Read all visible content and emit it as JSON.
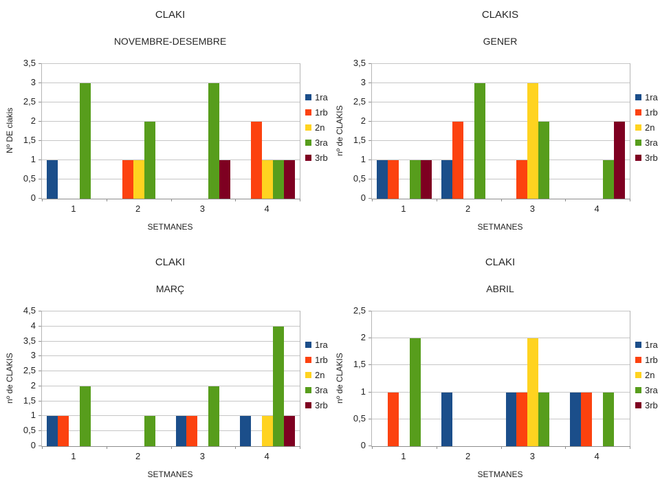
{
  "page": {
    "background": "#ffffff"
  },
  "series_colors": {
    "1ra": "#1B4E8A",
    "1rb": "#FC420F",
    "2n": "#FFD320",
    "3ra": "#579D1C",
    "3rb": "#7E0021"
  },
  "chart_data": [
    {
      "type": "bar",
      "title": "CLAKI",
      "subtitle": "NOVEMBRE-DESEMBRE",
      "xlabel": "SETMANES",
      "ylabel": "Nº DE clakis",
      "categories": [
        "1",
        "2",
        "3",
        "4"
      ],
      "series": [
        {
          "name": "1ra",
          "color": "#1B4E8A",
          "values": [
            1,
            0,
            0,
            0
          ]
        },
        {
          "name": "1rb",
          "color": "#FC420F",
          "values": [
            0,
            1,
            0,
            2
          ]
        },
        {
          "name": "2n",
          "color": "#FFD320",
          "values": [
            0,
            1,
            0,
            1
          ]
        },
        {
          "name": "3ra",
          "color": "#579D1C",
          "values": [
            3,
            2,
            3,
            1
          ]
        },
        {
          "name": "3rb",
          "color": "#7E0021",
          "values": [
            0,
            0,
            1,
            1
          ]
        }
      ],
      "ylim": [
        0,
        3.5
      ],
      "ytick_step": 0.5,
      "ytick_labels": [
        "0",
        "0,5",
        "1",
        "1,5",
        "2",
        "2,5",
        "3",
        "3,5"
      ],
      "legend_position": "right",
      "grid": true
    },
    {
      "type": "bar",
      "title": "CLAKIS",
      "subtitle": "GENER",
      "xlabel": "SETMANES",
      "ylabel": "nº de CLAKIS",
      "categories": [
        "1",
        "2",
        "3",
        "4"
      ],
      "series": [
        {
          "name": "1ra",
          "color": "#1B4E8A",
          "values": [
            1,
            1,
            0,
            0
          ]
        },
        {
          "name": "1rb",
          "color": "#FC420F",
          "values": [
            1,
            2,
            1,
            0
          ]
        },
        {
          "name": "2n",
          "color": "#FFD320",
          "values": [
            0,
            0,
            3,
            0
          ]
        },
        {
          "name": "3ra",
          "color": "#579D1C",
          "values": [
            1,
            3,
            2,
            1
          ]
        },
        {
          "name": "3rb",
          "color": "#7E0021",
          "values": [
            1,
            0,
            0,
            2
          ]
        }
      ],
      "ylim": [
        0,
        3.5
      ],
      "ytick_step": 0.5,
      "ytick_labels": [
        "0",
        "0,5",
        "1",
        "1,5",
        "2",
        "2,5",
        "3",
        "3,5"
      ],
      "legend_position": "right",
      "grid": true
    },
    {
      "type": "bar",
      "title": "CLAKI",
      "subtitle": "MARÇ",
      "xlabel": "SETMANES",
      "ylabel": "nº de CLAKIS",
      "categories": [
        "1",
        "2",
        "3",
        "4"
      ],
      "series": [
        {
          "name": "1ra",
          "color": "#1B4E8A",
          "values": [
            1,
            0,
            1,
            1
          ]
        },
        {
          "name": "1rb",
          "color": "#FC420F",
          "values": [
            1,
            0,
            1,
            0
          ]
        },
        {
          "name": "2n",
          "color": "#FFD320",
          "values": [
            0,
            0,
            0,
            1
          ]
        },
        {
          "name": "3ra",
          "color": "#579D1C",
          "values": [
            2,
            1,
            2,
            4
          ]
        },
        {
          "name": "3rb",
          "color": "#7E0021",
          "values": [
            0,
            0,
            0,
            1
          ]
        }
      ],
      "ylim": [
        0,
        4.5
      ],
      "ytick_step": 0.5,
      "ytick_labels": [
        "0",
        "0,5",
        "1",
        "1,5",
        "2",
        "2,5",
        "3",
        "3,5",
        "4",
        "4,5"
      ],
      "legend_position": "right",
      "grid": true
    },
    {
      "type": "bar",
      "title": "CLAKI",
      "subtitle": "ABRIL",
      "xlabel": "SETMANES",
      "ylabel": "nº de CLAKIS",
      "categories": [
        "1",
        "2",
        "3",
        "4"
      ],
      "series": [
        {
          "name": "1ra",
          "color": "#1B4E8A",
          "values": [
            0,
            1,
            1,
            1
          ]
        },
        {
          "name": "1rb",
          "color": "#FC420F",
          "values": [
            1,
            0,
            1,
            1
          ]
        },
        {
          "name": "2n",
          "color": "#FFD320",
          "values": [
            0,
            0,
            2,
            0
          ]
        },
        {
          "name": "3ra",
          "color": "#579D1C",
          "values": [
            2,
            0,
            1,
            1
          ]
        },
        {
          "name": "3rb",
          "color": "#7E0021",
          "values": [
            0,
            0,
            0,
            0
          ]
        }
      ],
      "ylim": [
        0,
        2.5
      ],
      "ytick_step": 0.5,
      "ytick_labels": [
        "0",
        "0,5",
        "1",
        "1,5",
        "2",
        "2,5"
      ],
      "legend_position": "right",
      "grid": true
    }
  ]
}
